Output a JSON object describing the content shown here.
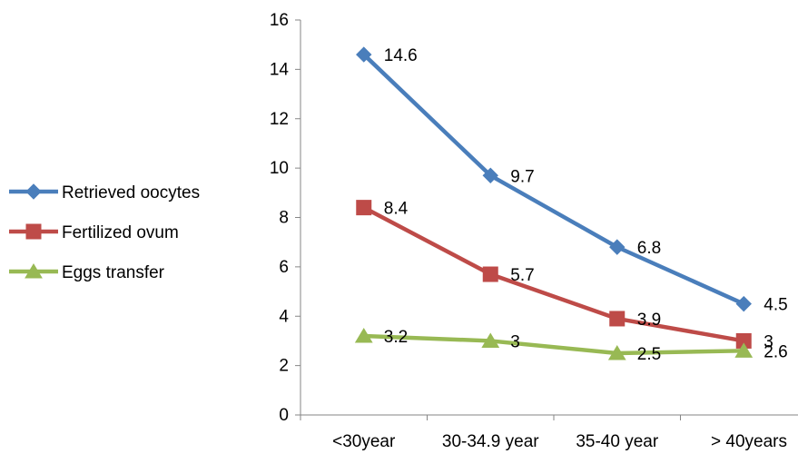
{
  "chart_data": {
    "type": "line",
    "title": "",
    "xlabel": "",
    "ylabel": "",
    "categories": [
      "<30year",
      "30-34.9 year",
      "35-40 year",
      "> 40years"
    ],
    "ylim": [
      0,
      16
    ],
    "yticks": [
      0,
      2,
      4,
      6,
      8,
      10,
      12,
      14,
      16
    ],
    "grid": false,
    "legend_position": "left",
    "series": [
      {
        "name": "Retrieved oocytes",
        "values": [
          14.6,
          9.7,
          6.8,
          4.5
        ],
        "labels": [
          "14.6",
          "9.7",
          "6.8",
          "4.5"
        ],
        "color": "#4a7ebb",
        "marker": "diamond"
      },
      {
        "name": "Fertilized ovum",
        "values": [
          8.4,
          5.7,
          3.9,
          3
        ],
        "labels": [
          "8.4",
          "5.7",
          "3.9",
          "3"
        ],
        "color": "#be4b48",
        "marker": "square"
      },
      {
        "name": "Eggs transfer",
        "values": [
          3.2,
          3,
          2.5,
          2.6
        ],
        "labels": [
          "3.2",
          "3",
          "2.5",
          "2.6"
        ],
        "color": "#98b954",
        "marker": "triangle"
      }
    ]
  }
}
